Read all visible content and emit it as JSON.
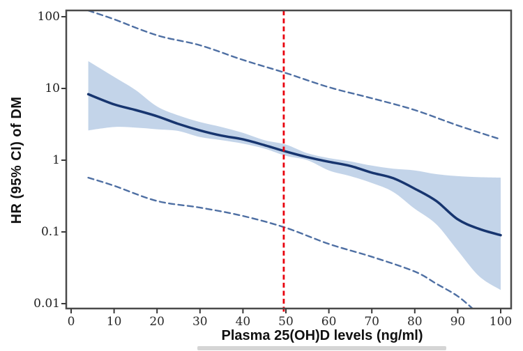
{
  "chart_data": {
    "type": "line",
    "title": "",
    "xlabel": "Plasma 25(OH)D levels (ng/ml)",
    "ylabel": "HR (95% CI) of DM",
    "grid": false,
    "legend": "none",
    "x_axis": {
      "ticks": [
        0,
        10,
        20,
        30,
        40,
        50,
        60,
        70,
        80,
        90,
        100
      ],
      "range": [
        -1,
        102.5
      ]
    },
    "y_axis": {
      "scale": "log",
      "ticks": [
        100,
        10,
        1,
        0.1,
        0.01
      ],
      "tick_labels": [
        "100",
        "10",
        "1",
        "0.1",
        "0.01"
      ],
      "range": [
        0.008,
        122
      ]
    },
    "reference_line": {
      "axis": "x",
      "value": 49.5,
      "style": "dashed",
      "color": "#e8000d"
    },
    "colors": {
      "estimate_line": "#17356f",
      "ci_band_fill": "#c3d4e9",
      "outer_ci_dashed": "#4e6fa3",
      "frame": "#4a4a4a",
      "tick": "#3a3a3a"
    },
    "series": [
      {
        "name": "HR estimate",
        "type": "line",
        "style": "solid",
        "color": "#17356f",
        "x": [
          4,
          10,
          15,
          20,
          25,
          30,
          35,
          40,
          45,
          50,
          55,
          60,
          65,
          70,
          75,
          80,
          85,
          90,
          95,
          100
        ],
        "y": [
          8.3,
          6.0,
          5.0,
          4.1,
          3.2,
          2.6,
          2.2,
          1.95,
          1.62,
          1.32,
          1.1,
          0.95,
          0.83,
          0.67,
          0.56,
          0.4,
          0.27,
          0.15,
          0.11,
          0.09
        ]
      },
      {
        "name": "95% CI band",
        "type": "band",
        "color": "#c3d4e9",
        "x": [
          4,
          10,
          15,
          20,
          25,
          30,
          35,
          40,
          45,
          50,
          55,
          60,
          65,
          70,
          75,
          80,
          85,
          90,
          95,
          100
        ],
        "upper": [
          24,
          14.5,
          9.5,
          5.6,
          4.2,
          3.4,
          2.9,
          2.4,
          1.9,
          1.65,
          1.25,
          1.07,
          0.96,
          0.84,
          0.76,
          0.72,
          0.64,
          0.6,
          0.58,
          0.57
        ],
        "lower": [
          2.6,
          2.9,
          2.85,
          2.7,
          2.55,
          2.1,
          1.9,
          1.7,
          1.45,
          1.15,
          1.0,
          0.72,
          0.6,
          0.48,
          0.36,
          0.21,
          0.128,
          0.055,
          0.024,
          0.0155
        ]
      },
      {
        "name": "outer 95% CI upper bound",
        "type": "line",
        "style": "dashed",
        "color": "#4e6fa3",
        "x": [
          4,
          10,
          20,
          30,
          40,
          50,
          60,
          70,
          80,
          90,
          100
        ],
        "y": [
          122,
          92,
          55,
          40,
          25,
          16.4,
          10.4,
          7.3,
          5.0,
          3.05,
          1.95
        ]
      },
      {
        "name": "outer 95% CI lower bound",
        "type": "line",
        "style": "dashed",
        "color": "#4e6fa3",
        "x": [
          4,
          10,
          20,
          30,
          40,
          50,
          60,
          70,
          80,
          85,
          90,
          94
        ],
        "y": [
          0.57,
          0.44,
          0.27,
          0.218,
          0.167,
          0.114,
          0.068,
          0.045,
          0.028,
          0.019,
          0.0127,
          0.008
        ]
      }
    ]
  }
}
